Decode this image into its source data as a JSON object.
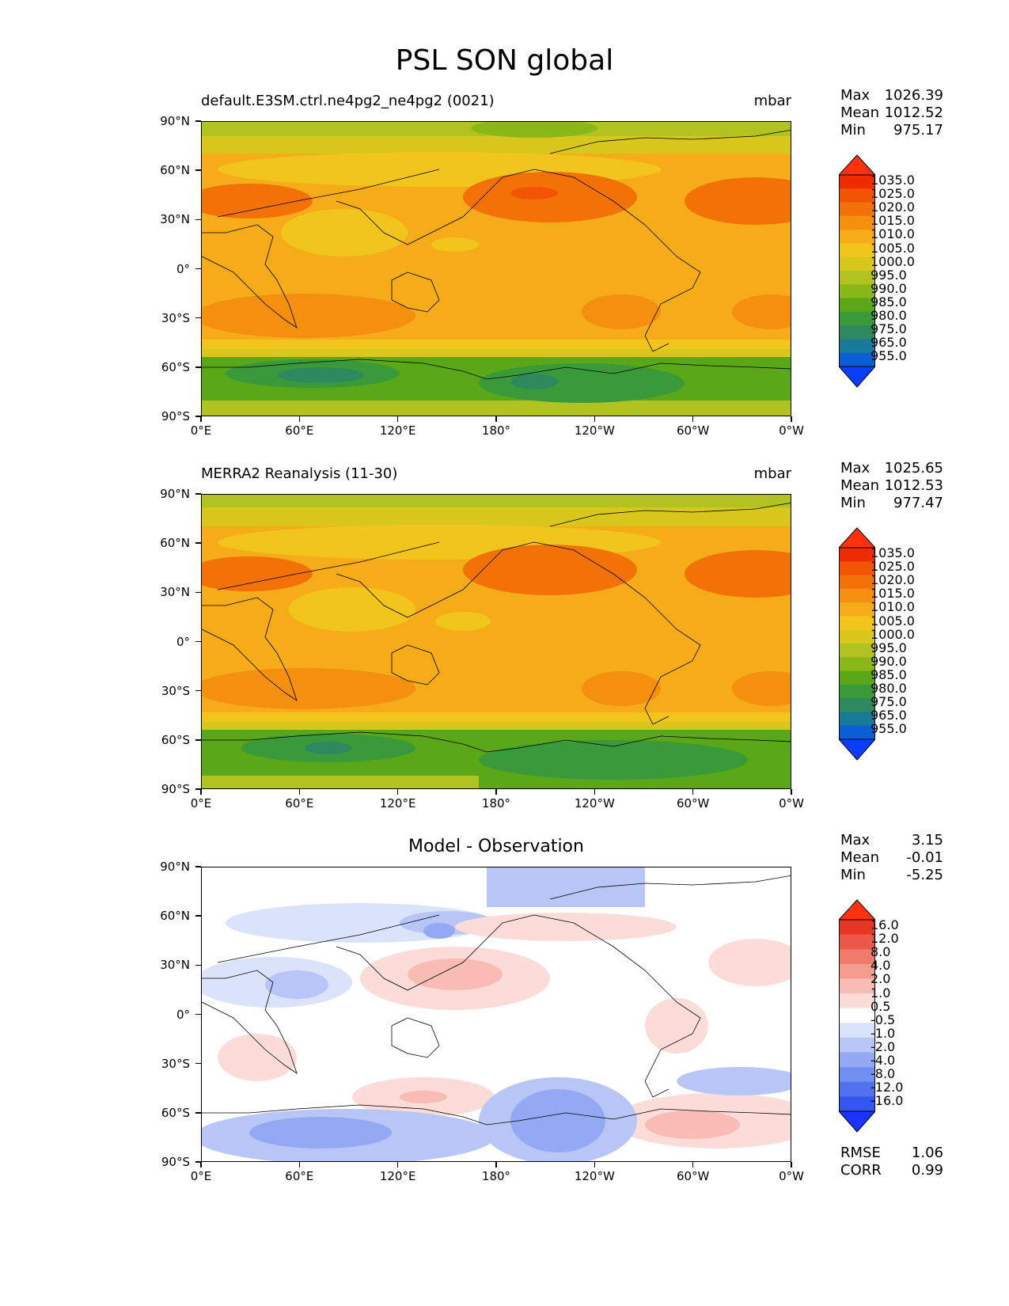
{
  "title": "PSL SON global",
  "units": "mbar",
  "x_ticks": [
    "0°E",
    "60°E",
    "120°E",
    "180°",
    "120°W",
    "60°W",
    "0°W"
  ],
  "y_ticks": [
    "90°N",
    "60°N",
    "30°N",
    "0°",
    "30°S",
    "60°S",
    "90°S"
  ],
  "colors": {
    "psl_levels": [
      "#0b3dff",
      "#0b5fd6",
      "#197a9a",
      "#2e8a5e",
      "#3a9a3a",
      "#5aa818",
      "#8ab818",
      "#b2c220",
      "#d8c81e",
      "#f2c51c",
      "#f6ab18",
      "#f48f10",
      "#f27208",
      "#f25404",
      "#ee2c00",
      "#ff3210"
    ],
    "diff_levels": [
      "#1a33ff",
      "#3456f0",
      "#5172ec",
      "#708ff0",
      "#93a9f3",
      "#b8c6f7",
      "#dbe3fb",
      "#ffffff",
      "#fcdcd8",
      "#f8bcb4",
      "#f49c90",
      "#f07a6c",
      "#ec5848",
      "#e83624",
      "#ff3210"
    ],
    "coastline": "#000000"
  },
  "panels": [
    {
      "title_left": "default.E3SM.ctrl.ne4pg2_ne4pg2 (0021)",
      "title_right": "mbar",
      "stats": [
        [
          "Max",
          "1026.39"
        ],
        [
          "Mean",
          "1012.52"
        ],
        [
          "Min",
          "975.17"
        ]
      ],
      "colorbar_labels": [
        "1035.0",
        "1025.0",
        "1020.0",
        "1015.0",
        "1010.0",
        "1005.0",
        "1000.0",
        "995.0",
        "990.0",
        "985.0",
        "980.0",
        "975.0",
        "965.0",
        "955.0"
      ]
    },
    {
      "title_left": "MERRA2 Reanalysis (11-30)",
      "title_right": "mbar",
      "stats": [
        [
          "Max",
          "1025.65"
        ],
        [
          "Mean",
          "1012.53"
        ],
        [
          "Min",
          "977.47"
        ]
      ],
      "colorbar_labels": [
        "1035.0",
        "1025.0",
        "1020.0",
        "1015.0",
        "1010.0",
        "1005.0",
        "1000.0",
        "995.0",
        "990.0",
        "985.0",
        "980.0",
        "975.0",
        "965.0",
        "955.0"
      ]
    },
    {
      "title_center": "Model - Observation",
      "stats": [
        [
          "Max",
          "3.15"
        ],
        [
          "Mean",
          "-0.01"
        ],
        [
          "Min",
          "-5.25"
        ]
      ],
      "colorbar_labels": [
        "16.0",
        "12.0",
        "8.0",
        "4.0",
        "2.0",
        "1.0",
        "0.5",
        "-0.5",
        "-1.0",
        "-2.0",
        "-4.0",
        "-8.0",
        "-12.0",
        "-16.0"
      ],
      "metrics": [
        [
          "RMSE",
          "1.06"
        ],
        [
          "CORR",
          "0.99"
        ]
      ]
    }
  ]
}
